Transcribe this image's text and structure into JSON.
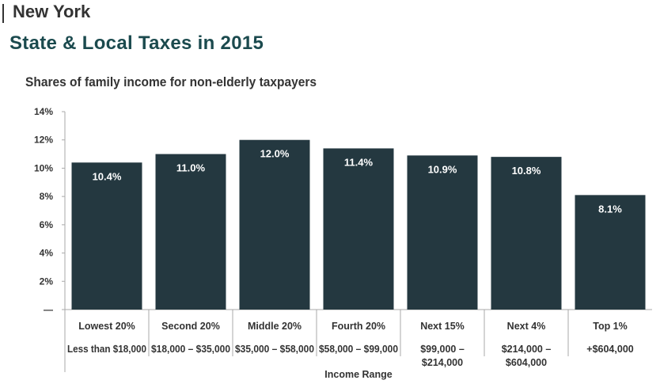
{
  "header": {
    "state": "New York",
    "title": "State & Local Taxes in 2015"
  },
  "chart_data": {
    "type": "bar",
    "title": "Shares of family income for non-elderly taxpayers",
    "xlabel": "Income Range",
    "ylabel": "",
    "ylim": [
      0,
      14
    ],
    "yticks": [
      "—",
      "2%",
      "4%",
      "6%",
      "8%",
      "10%",
      "12%",
      "14%"
    ],
    "categories": [
      "Lowest 20%",
      "Second 20%",
      "Middle 20%",
      "Fourth 20%",
      "Next 15%",
      "Next 4%",
      "Top 1%"
    ],
    "income_ranges": [
      [
        "Less than $18,000"
      ],
      [
        "$18,000 – $35,000"
      ],
      [
        "$35,000 – $58,000"
      ],
      [
        "$58,000 – $99,000"
      ],
      [
        "$99,000 –",
        "$214,000"
      ],
      [
        "$214,000 –",
        "$604,000"
      ],
      [
        "+$604,000"
      ]
    ],
    "values": [
      10.4,
      11.0,
      12.0,
      11.4,
      10.9,
      10.8,
      8.1
    ],
    "data_labels": [
      "10.4%",
      "11.0%",
      "12.0%",
      "11.4%",
      "10.9%",
      "10.8%",
      "8.1%"
    ],
    "grid": false,
    "colors": {
      "bar": "#243840",
      "axis": "#aaaaaa",
      "text": "#333333",
      "label": "#ffffff"
    }
  }
}
